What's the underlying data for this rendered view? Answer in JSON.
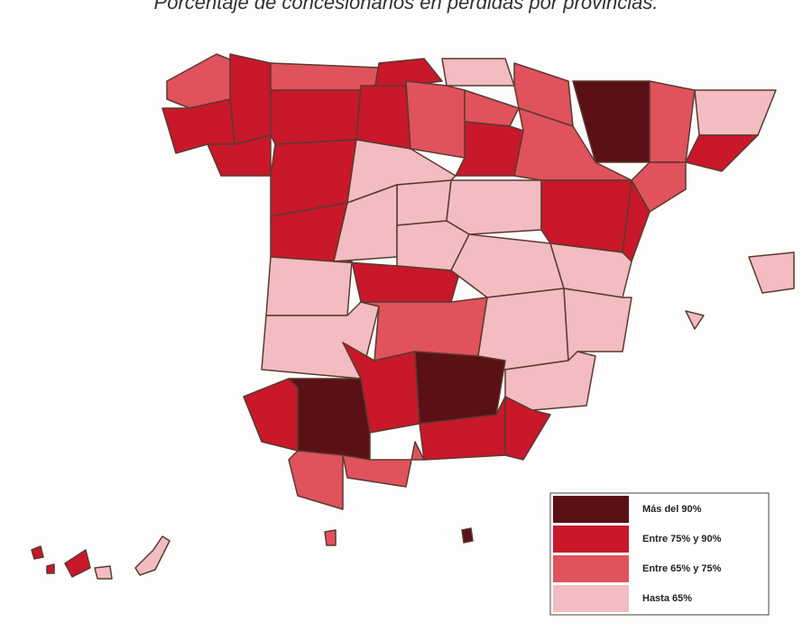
{
  "title": "Porcentaje de concesionarios en pérdidas por provincias.",
  "legend": [
    {
      "label": "Más del 90%",
      "color": "#5a1015"
    },
    {
      "label": "Entre 75% y 90%",
      "color": "#c8182a"
    },
    {
      "label": "Entre 65% y 75%",
      "color": "#e0525c"
    },
    {
      "label": "Hasta 65%",
      "color": "#f2bcc0"
    }
  ]
}
